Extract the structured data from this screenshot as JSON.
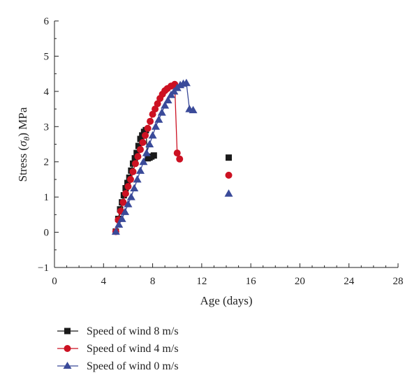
{
  "chart_data": {
    "type": "scatter",
    "xlabel": "Age (days)",
    "ylabel_prefix": "Stress (",
    "ylabel_symbol": "σ",
    "ylabel_subscript": "θ",
    "ylabel_suffix": ") MPa",
    "xlim": [
      0,
      28
    ],
    "ylim": [
      -1,
      6
    ],
    "xticks": [
      "0",
      "4",
      "8",
      "12",
      "16",
      "20",
      "24",
      "28"
    ],
    "yticks": [
      "−1",
      "0",
      "1",
      "2",
      "3",
      "4",
      "5",
      "6"
    ],
    "grid": false,
    "legend_position": "bottom-left",
    "series": [
      {
        "name": "Speed of wind 8 m/s",
        "color": "#1a1a1a",
        "marker": "square",
        "x": [
          5.0,
          5.2,
          5.35,
          5.5,
          5.65,
          5.8,
          5.95,
          6.1,
          6.25,
          6.4,
          6.55,
          6.7,
          6.85,
          7.0,
          7.15,
          7.3,
          7.45,
          7.6,
          7.75,
          7.9,
          8.1
        ],
        "y": [
          0.02,
          0.38,
          0.65,
          0.85,
          1.05,
          1.25,
          1.4,
          1.55,
          1.75,
          1.95,
          2.1,
          2.25,
          2.45,
          2.65,
          2.75,
          2.85,
          2.9,
          2.1,
          2.12,
          2.15,
          2.18
        ],
        "extra_x": [
          14.2
        ],
        "extra_y": [
          2.12
        ]
      },
      {
        "name": "Speed of wind 4 m/s",
        "color": "#cc1122",
        "marker": "circle",
        "x": [
          5.0,
          5.2,
          5.4,
          5.6,
          5.8,
          6.0,
          6.2,
          6.4,
          6.6,
          6.8,
          7.0,
          7.2,
          7.4,
          7.6,
          7.8,
          8.0,
          8.2,
          8.4,
          8.6,
          8.8,
          9.0,
          9.2,
          9.5,
          9.8,
          10.0,
          10.2
        ],
        "y": [
          0.02,
          0.35,
          0.6,
          0.85,
          1.1,
          1.3,
          1.5,
          1.72,
          1.95,
          2.15,
          2.35,
          2.55,
          2.75,
          2.95,
          3.15,
          3.35,
          3.5,
          3.65,
          3.8,
          3.92,
          4.02,
          4.08,
          4.15,
          4.2,
          2.25,
          2.08
        ],
        "extra_x": [
          14.2
        ],
        "extra_y": [
          1.62
        ]
      },
      {
        "name": "Speed of wind 0 m/s",
        "color": "#3a4a99",
        "marker": "triangle",
        "x": [
          5.0,
          5.25,
          5.5,
          5.75,
          6.0,
          6.25,
          6.5,
          6.75,
          7.0,
          7.25,
          7.5,
          7.75,
          8.0,
          8.25,
          8.5,
          8.75,
          9.0,
          9.25,
          9.5,
          9.75,
          10.0,
          10.25,
          10.5,
          10.75,
          11.0,
          11.3
        ],
        "y": [
          0.02,
          0.22,
          0.38,
          0.58,
          0.8,
          1.0,
          1.25,
          1.5,
          1.75,
          2.0,
          2.25,
          2.5,
          2.75,
          3.0,
          3.2,
          3.4,
          3.6,
          3.75,
          3.9,
          4.0,
          4.1,
          4.18,
          4.22,
          4.24,
          3.5,
          3.47
        ],
        "extra_x": [
          14.2
        ],
        "extra_y": [
          1.1
        ]
      }
    ]
  }
}
